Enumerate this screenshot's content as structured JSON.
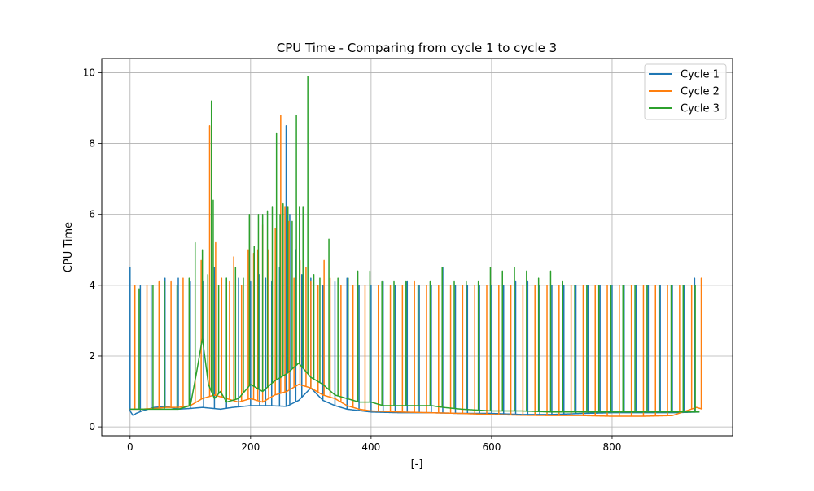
{
  "chart_data": {
    "type": "line",
    "title": "CPU Time - Comparing from cycle 1 to cycle 3",
    "xlabel": "[-]",
    "ylabel": "CPU Time",
    "xlim": [
      -47,
      1000
    ],
    "ylim": [
      -0.25,
      10.4
    ],
    "x_ticks": [
      0,
      200,
      400,
      600,
      800
    ],
    "y_ticks": [
      0,
      2,
      4,
      6,
      8,
      10
    ],
    "grid": true,
    "legend_position": "top-right",
    "series": [
      {
        "name": "Cycle 1",
        "color": "#1f77b4",
        "base": [
          [
            0,
            0.45
          ],
          [
            5,
            0.32
          ],
          [
            10,
            0.38
          ],
          [
            20,
            0.45
          ],
          [
            30,
            0.5
          ],
          [
            40,
            0.55
          ],
          [
            60,
            0.58
          ],
          [
            80,
            0.5
          ],
          [
            100,
            0.52
          ],
          [
            120,
            0.55
          ],
          [
            150,
            0.5
          ],
          [
            170,
            0.55
          ],
          [
            200,
            0.6
          ],
          [
            230,
            0.6
          ],
          [
            260,
            0.58
          ],
          [
            280,
            0.75
          ],
          [
            300,
            1.1
          ],
          [
            320,
            0.75
          ],
          [
            340,
            0.6
          ],
          [
            360,
            0.5
          ],
          [
            400,
            0.42
          ],
          [
            450,
            0.4
          ],
          [
            500,
            0.4
          ],
          [
            550,
            0.38
          ],
          [
            600,
            0.38
          ],
          [
            650,
            0.35
          ],
          [
            700,
            0.35
          ],
          [
            750,
            0.38
          ],
          [
            800,
            0.4
          ],
          [
            850,
            0.4
          ],
          [
            900,
            0.4
          ],
          [
            945,
            0.42
          ]
        ],
        "spikes": [
          [
            0,
            4.5
          ],
          [
            17,
            4.0
          ],
          [
            35,
            4.0
          ],
          [
            58,
            4.2
          ],
          [
            80,
            4.2
          ],
          [
            100,
            4.1
          ],
          [
            122,
            4.1
          ],
          [
            140,
            4.5
          ],
          [
            160,
            4.2
          ],
          [
            180,
            4.2
          ],
          [
            200,
            4.1
          ],
          [
            215,
            4.3
          ],
          [
            225,
            4.2
          ],
          [
            235,
            4.1
          ],
          [
            248,
            4.5
          ],
          [
            259,
            8.5
          ],
          [
            265,
            6.0
          ],
          [
            275,
            5.0
          ],
          [
            285,
            4.3
          ],
          [
            300,
            4.2
          ],
          [
            320,
            4.0
          ],
          [
            340,
            4.1
          ],
          [
            360,
            4.2
          ],
          [
            380,
            4.0
          ],
          [
            400,
            4.0
          ],
          [
            420,
            4.1
          ],
          [
            440,
            4.0
          ],
          [
            460,
            4.1
          ],
          [
            480,
            4.0
          ],
          [
            500,
            4.0
          ],
          [
            519,
            4.5
          ],
          [
            540,
            4.0
          ],
          [
            560,
            4.0
          ],
          [
            580,
            4.0
          ],
          [
            600,
            4.0
          ],
          [
            620,
            4.0
          ],
          [
            640,
            4.1
          ],
          [
            660,
            4.1
          ],
          [
            680,
            4.0
          ],
          [
            700,
            4.0
          ],
          [
            720,
            4.0
          ],
          [
            740,
            4.0
          ],
          [
            760,
            4.0
          ],
          [
            780,
            4.0
          ],
          [
            800,
            4.0
          ],
          [
            820,
            4.0
          ],
          [
            840,
            4.0
          ],
          [
            860,
            4.0
          ],
          [
            880,
            4.0
          ],
          [
            900,
            4.0
          ],
          [
            920,
            4.0
          ],
          [
            937,
            4.2
          ]
        ]
      },
      {
        "name": "Cycle 2",
        "color": "#ff7f0e",
        "base": [
          [
            0,
            0.5
          ],
          [
            20,
            0.5
          ],
          [
            40,
            0.52
          ],
          [
            60,
            0.55
          ],
          [
            80,
            0.55
          ],
          [
            100,
            0.6
          ],
          [
            120,
            0.8
          ],
          [
            140,
            0.9
          ],
          [
            160,
            0.8
          ],
          [
            180,
            0.7
          ],
          [
            200,
            0.8
          ],
          [
            220,
            0.7
          ],
          [
            240,
            0.9
          ],
          [
            260,
            1.0
          ],
          [
            280,
            1.2
          ],
          [
            300,
            1.1
          ],
          [
            320,
            0.9
          ],
          [
            340,
            0.8
          ],
          [
            360,
            0.6
          ],
          [
            380,
            0.5
          ],
          [
            400,
            0.45
          ],
          [
            450,
            0.42
          ],
          [
            500,
            0.4
          ],
          [
            550,
            0.38
          ],
          [
            600,
            0.35
          ],
          [
            650,
            0.33
          ],
          [
            700,
            0.32
          ],
          [
            750,
            0.32
          ],
          [
            800,
            0.3
          ],
          [
            850,
            0.3
          ],
          [
            900,
            0.32
          ],
          [
            940,
            0.55
          ],
          [
            950,
            0.5
          ]
        ],
        "spikes": [
          [
            8,
            4.0
          ],
          [
            28,
            4.0
          ],
          [
            48,
            4.1
          ],
          [
            68,
            4.1
          ],
          [
            88,
            4.2
          ],
          [
            108,
            4.0
          ],
          [
            118,
            4.7
          ],
          [
            132,
            8.5
          ],
          [
            142,
            5.2
          ],
          [
            152,
            4.2
          ],
          [
            165,
            4.1
          ],
          [
            172,
            4.8
          ],
          [
            185,
            4.0
          ],
          [
            196,
            5.0
          ],
          [
            205,
            4.9
          ],
          [
            212,
            5.0
          ],
          [
            220,
            5.7
          ],
          [
            230,
            5.0
          ],
          [
            241,
            5.6
          ],
          [
            250,
            8.8
          ],
          [
            257,
            6.2
          ],
          [
            264,
            5.8
          ],
          [
            272,
            4.2
          ],
          [
            282,
            4.7
          ],
          [
            292,
            4.5
          ],
          [
            300,
            4.1
          ],
          [
            312,
            4.0
          ],
          [
            322,
            4.7
          ],
          [
            332,
            4.2
          ],
          [
            350,
            4.0
          ],
          [
            370,
            4.0
          ],
          [
            390,
            4.0
          ],
          [
            412,
            4.0
          ],
          [
            432,
            4.0
          ],
          [
            452,
            4.0
          ],
          [
            472,
            4.1
          ],
          [
            492,
            4.0
          ],
          [
            512,
            4.0
          ],
          [
            532,
            4.0
          ],
          [
            552,
            4.0
          ],
          [
            572,
            4.0
          ],
          [
            592,
            4.0
          ],
          [
            612,
            4.0
          ],
          [
            632,
            4.0
          ],
          [
            652,
            4.0
          ],
          [
            672,
            4.0
          ],
          [
            692,
            4.0
          ],
          [
            712,
            4.0
          ],
          [
            732,
            4.0
          ],
          [
            752,
            4.0
          ],
          [
            772,
            4.0
          ],
          [
            792,
            4.0
          ],
          [
            812,
            4.0
          ],
          [
            832,
            4.0
          ],
          [
            852,
            4.0
          ],
          [
            872,
            4.0
          ],
          [
            892,
            4.0
          ],
          [
            912,
            4.0
          ],
          [
            932,
            4.0
          ],
          [
            948,
            4.2
          ]
        ]
      },
      {
        "name": "Cycle 3",
        "color": "#2ca02c",
        "base": [
          [
            0,
            0.5
          ],
          [
            20,
            0.5
          ],
          [
            40,
            0.5
          ],
          [
            60,
            0.5
          ],
          [
            80,
            0.5
          ],
          [
            100,
            0.6
          ],
          [
            110,
            1.5
          ],
          [
            120,
            2.5
          ],
          [
            130,
            1.2
          ],
          [
            140,
            0.8
          ],
          [
            150,
            1.0
          ],
          [
            160,
            0.7
          ],
          [
            180,
            0.8
          ],
          [
            200,
            1.2
          ],
          [
            220,
            1.0
          ],
          [
            240,
            1.3
          ],
          [
            260,
            1.5
          ],
          [
            280,
            1.8
          ],
          [
            300,
            1.4
          ],
          [
            320,
            1.2
          ],
          [
            340,
            0.9
          ],
          [
            360,
            0.8
          ],
          [
            380,
            0.7
          ],
          [
            400,
            0.7
          ],
          [
            420,
            0.6
          ],
          [
            450,
            0.6
          ],
          [
            500,
            0.6
          ],
          [
            520,
            0.55
          ],
          [
            550,
            0.5
          ],
          [
            600,
            0.45
          ],
          [
            650,
            0.45
          ],
          [
            700,
            0.42
          ],
          [
            750,
            0.42
          ],
          [
            800,
            0.42
          ],
          [
            850,
            0.42
          ],
          [
            900,
            0.42
          ],
          [
            945,
            0.42
          ]
        ],
        "spikes": [
          [
            15,
            3.9
          ],
          [
            38,
            4.0
          ],
          [
            57,
            4.1
          ],
          [
            78,
            4.0
          ],
          [
            98,
            4.2
          ],
          [
            108,
            5.2
          ],
          [
            120,
            5.0
          ],
          [
            129,
            4.3
          ],
          [
            135,
            9.2
          ],
          [
            138,
            6.4
          ],
          [
            147,
            4.0
          ],
          [
            160,
            4.2
          ],
          [
            175,
            4.5
          ],
          [
            188,
            4.2
          ],
          [
            198,
            6.0
          ],
          [
            206,
            5.1
          ],
          [
            213,
            6.0
          ],
          [
            220,
            6.0
          ],
          [
            228,
            6.1
          ],
          [
            236,
            6.2
          ],
          [
            243,
            8.3
          ],
          [
            249,
            6.0
          ],
          [
            254,
            6.3
          ],
          [
            262,
            6.2
          ],
          [
            269,
            5.8
          ],
          [
            276,
            8.8
          ],
          [
            281,
            6.2
          ],
          [
            287,
            6.2
          ],
          [
            295,
            9.9
          ],
          [
            305,
            4.3
          ],
          [
            315,
            4.2
          ],
          [
            330,
            5.3
          ],
          [
            345,
            4.2
          ],
          [
            362,
            4.2
          ],
          [
            378,
            4.4
          ],
          [
            398,
            4.4
          ],
          [
            418,
            4.1
          ],
          [
            438,
            4.1
          ],
          [
            458,
            4.1
          ],
          [
            478,
            4.0
          ],
          [
            498,
            4.1
          ],
          [
            518,
            4.5
          ],
          [
            538,
            4.1
          ],
          [
            558,
            4.1
          ],
          [
            578,
            4.1
          ],
          [
            598,
            4.5
          ],
          [
            618,
            4.4
          ],
          [
            638,
            4.5
          ],
          [
            658,
            4.4
          ],
          [
            678,
            4.2
          ],
          [
            698,
            4.4
          ],
          [
            718,
            4.1
          ],
          [
            738,
            4.0
          ],
          [
            758,
            4.0
          ],
          [
            778,
            4.0
          ],
          [
            798,
            4.0
          ],
          [
            818,
            4.0
          ],
          [
            838,
            4.0
          ],
          [
            858,
            4.0
          ],
          [
            878,
            4.0
          ],
          [
            898,
            4.0
          ],
          [
            918,
            4.0
          ],
          [
            938,
            4.0
          ]
        ]
      }
    ]
  }
}
